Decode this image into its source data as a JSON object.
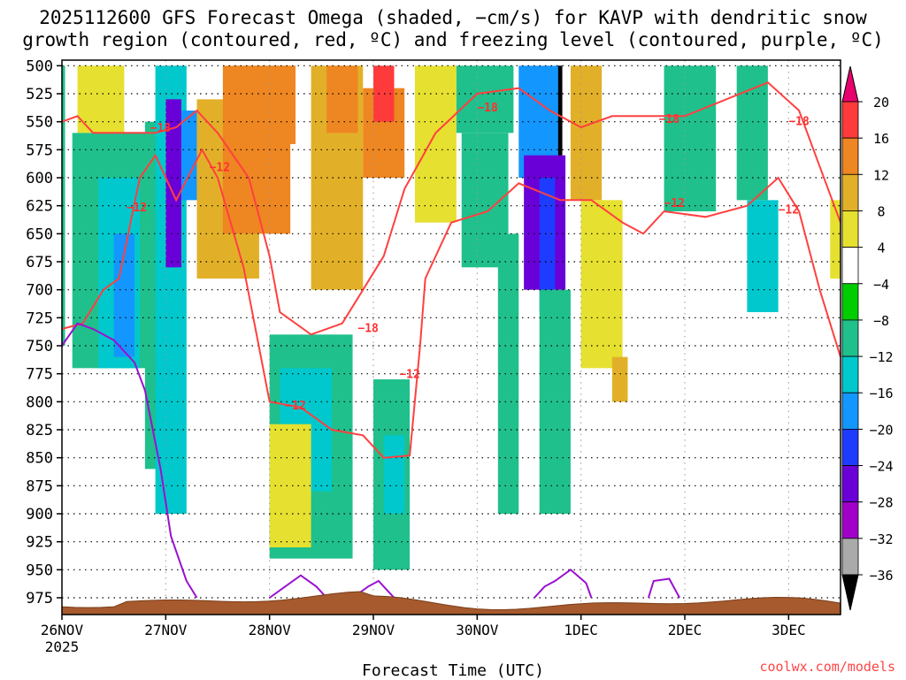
{
  "title_line1": "2025112600 GFS Forecast Omega (shaded, −cm/s) for KAVP with dendritic snow",
  "title_line2": "growth region (contoured, red, ºC) and freezing level (contoured, purple, ºC)",
  "credit": "coolwx.com/models",
  "chart_data": {
    "type": "heatmap",
    "title": "2025112600 GFS Forecast Omega (shaded, −cm/s) for KAVP with dendritic snow growth region (contoured, red, ºC) and freezing level (contoured, purple, ºC)",
    "xlabel": "Forecast Time (UTC)",
    "ylabel": "",
    "x_tick_labels": [
      "26NOV",
      "27NOV",
      "28NOV",
      "29NOV",
      "30NOV",
      "1DEC",
      "2DEC",
      "3DEC"
    ],
    "x_first_tick_sublabel": "2025",
    "y_tick_labels": [
      "500",
      "525",
      "550",
      "575",
      "600",
      "625",
      "650",
      "675",
      "700",
      "725",
      "750",
      "775",
      "800",
      "825",
      "850",
      "875",
      "900",
      "925",
      "950",
      "975"
    ],
    "y_range_hpa": [
      990,
      495
    ],
    "x_range_days_after_26nov00z": [
      0,
      7.5
    ],
    "grid": "dotted",
    "colorbar": {
      "labels": [
        "20",
        "16",
        "12",
        "8",
        "4",
        "−4",
        "−8",
        "−12",
        "−16",
        "−20",
        "−24",
        "−28",
        "−32",
        "−36"
      ],
      "colors": [
        "#e8006e",
        "#ff3a3a",
        "#ee8622",
        "#e2b028",
        "#e6e030",
        "#ffffff",
        "#00cd00",
        "#20c08c",
        "#00c8cc",
        "#1496ff",
        "#1e3cff",
        "#6a00d8",
        "#a000c8",
        "#aaaaaa",
        "#000000"
      ]
    },
    "omega_cells": [
      {
        "t0": 0.0,
        "t1": 0.03,
        "p0": 500,
        "p1": 750,
        "v": -10
      },
      {
        "t0": 0.15,
        "t1": 0.6,
        "p0": 500,
        "p1": 560,
        "v": 6
      },
      {
        "t0": 0.1,
        "t1": 0.9,
        "p0": 560,
        "p1": 770,
        "v": -9
      },
      {
        "t0": 0.35,
        "t1": 0.75,
        "p0": 600,
        "p1": 770,
        "v": -14
      },
      {
        "t0": 0.5,
        "t1": 0.7,
        "p0": 650,
        "p1": 760,
        "v": -19
      },
      {
        "t0": 0.8,
        "t1": 1.0,
        "p0": 550,
        "p1": 860,
        "v": -10
      },
      {
        "t0": 0.9,
        "t1": 1.2,
        "p0": 500,
        "p1": 900,
        "v": -13
      },
      {
        "t0": 1.0,
        "t1": 1.15,
        "p0": 530,
        "p1": 680,
        "v": -25
      },
      {
        "t0": 1.15,
        "t1": 1.3,
        "p0": 540,
        "p1": 620,
        "v": -18
      },
      {
        "t0": 1.3,
        "t1": 1.9,
        "p0": 530,
        "p1": 690,
        "v": 9
      },
      {
        "t0": 1.55,
        "t1": 2.2,
        "p0": 500,
        "p1": 650,
        "v": 12
      },
      {
        "t0": 1.65,
        "t1": 2.25,
        "p0": 500,
        "p1": 570,
        "v": 14
      },
      {
        "t0": 2.0,
        "t1": 2.8,
        "p0": 740,
        "p1": 940,
        "v": -8
      },
      {
        "t0": 2.1,
        "t1": 2.6,
        "p0": 770,
        "p1": 880,
        "v": -12
      },
      {
        "t0": 2.4,
        "t1": 2.9,
        "p0": 500,
        "p1": 700,
        "v": 10
      },
      {
        "t0": 2.55,
        "t1": 2.85,
        "p0": 500,
        "p1": 560,
        "v": 14
      },
      {
        "t0": 2.9,
        "t1": 3.3,
        "p0": 520,
        "p1": 600,
        "v": 12
      },
      {
        "t0": 3.0,
        "t1": 3.2,
        "p0": 500,
        "p1": 550,
        "v": 19
      },
      {
        "t0": 3.0,
        "t1": 3.35,
        "p0": 780,
        "p1": 950,
        "v": -9
      },
      {
        "t0": 3.1,
        "t1": 3.3,
        "p0": 830,
        "p1": 900,
        "v": -14
      },
      {
        "t0": 2.0,
        "t1": 2.4,
        "p0": 820,
        "p1": 930,
        "v": 6
      },
      {
        "t0": 3.4,
        "t1": 3.8,
        "p0": 500,
        "p1": 640,
        "v": 6
      },
      {
        "t0": 3.8,
        "t1": 4.35,
        "p0": 500,
        "p1": 560,
        "v": -8
      },
      {
        "t0": 3.85,
        "t1": 4.3,
        "p0": 560,
        "p1": 680,
        "v": -10
      },
      {
        "t0": 4.2,
        "t1": 4.4,
        "p0": 650,
        "p1": 900,
        "v": -9
      },
      {
        "t0": 4.4,
        "t1": 4.8,
        "p0": 500,
        "p1": 600,
        "v": -18
      },
      {
        "t0": 4.45,
        "t1": 4.85,
        "p0": 580,
        "p1": 700,
        "v": -25
      },
      {
        "t0": 4.6,
        "t1": 4.75,
        "p0": 600,
        "p1": 720,
        "v": -22
      },
      {
        "t0": 4.6,
        "t1": 4.9,
        "p0": 700,
        "p1": 900,
        "v": -11
      },
      {
        "t0": 4.78,
        "t1": 4.82,
        "p0": 500,
        "p1": 580,
        "v": -37
      },
      {
        "t0": 4.9,
        "t1": 5.2,
        "p0": 500,
        "p1": 620,
        "v": 10
      },
      {
        "t0": 5.0,
        "t1": 5.4,
        "p0": 620,
        "p1": 770,
        "v": 6
      },
      {
        "t0": 5.3,
        "t1": 5.45,
        "p0": 760,
        "p1": 800,
        "v": 9
      },
      {
        "t0": 5.8,
        "t1": 6.3,
        "p0": 500,
        "p1": 630,
        "v": -8
      },
      {
        "t0": 6.5,
        "t1": 6.8,
        "p0": 500,
        "p1": 620,
        "v": -9
      },
      {
        "t0": 6.6,
        "t1": 6.9,
        "p0": 620,
        "p1": 720,
        "v": -12
      },
      {
        "t0": 7.4,
        "t1": 7.5,
        "p0": 620,
        "p1": 690,
        "v": 6
      }
    ],
    "dgz_contours": [
      {
        "level": -12,
        "points": [
          [
            0.0,
            735
          ],
          [
            0.2,
            730
          ],
          [
            0.4,
            700
          ],
          [
            0.55,
            690
          ],
          [
            0.75,
            600
          ],
          [
            0.9,
            580
          ],
          [
            1.1,
            620
          ],
          [
            1.35,
            575
          ],
          [
            1.5,
            600
          ],
          [
            1.75,
            680
          ],
          [
            2.0,
            800
          ],
          [
            2.3,
            805
          ],
          [
            2.6,
            825
          ],
          [
            2.9,
            830
          ],
          [
            3.1,
            850
          ],
          [
            3.35,
            848
          ],
          [
            3.45,
            750
          ],
          [
            3.5,
            690
          ],
          [
            3.75,
            640
          ],
          [
            4.1,
            630
          ],
          [
            4.4,
            605
          ],
          [
            4.8,
            620
          ],
          [
            5.1,
            620
          ],
          [
            5.4,
            640
          ],
          [
            5.6,
            650
          ],
          [
            5.8,
            630
          ],
          [
            6.2,
            635
          ],
          [
            6.6,
            625
          ],
          [
            6.9,
            600
          ],
          [
            7.1,
            630
          ],
          [
            7.3,
            700
          ],
          [
            7.5,
            760
          ]
        ]
      },
      {
        "level": -18,
        "points": [
          [
            0.0,
            550
          ],
          [
            0.15,
            545
          ],
          [
            0.3,
            560
          ],
          [
            0.5,
            560
          ],
          [
            0.7,
            560
          ],
          [
            0.9,
            560
          ],
          [
            1.1,
            555
          ],
          [
            1.3,
            540
          ],
          [
            1.5,
            560
          ],
          [
            1.8,
            600
          ],
          [
            2.0,
            670
          ],
          [
            2.1,
            720
          ],
          [
            2.4,
            740
          ],
          [
            2.7,
            730
          ],
          [
            2.9,
            700
          ],
          [
            3.1,
            670
          ],
          [
            3.3,
            610
          ],
          [
            3.6,
            560
          ],
          [
            4.0,
            525
          ],
          [
            4.4,
            520
          ],
          [
            4.7,
            540
          ],
          [
            5.0,
            555
          ],
          [
            5.3,
            545
          ],
          [
            5.6,
            545
          ],
          [
            6.0,
            545
          ],
          [
            6.4,
            530
          ],
          [
            6.8,
            515
          ],
          [
            7.1,
            540
          ],
          [
            7.3,
            590
          ],
          [
            7.5,
            640
          ]
        ]
      }
    ],
    "freezing_contours": [
      {
        "level": 0,
        "points": [
          [
            0.0,
            750
          ],
          [
            0.15,
            730
          ],
          [
            0.3,
            735
          ],
          [
            0.5,
            745
          ],
          [
            0.7,
            765
          ],
          [
            0.8,
            790
          ],
          [
            0.95,
            860
          ],
          [
            1.05,
            920
          ],
          [
            1.2,
            960
          ],
          [
            1.3,
            975
          ]
        ]
      },
      {
        "level": 0,
        "points": [
          [
            2.0,
            975
          ],
          [
            2.15,
            965
          ],
          [
            2.3,
            955
          ],
          [
            2.45,
            965
          ],
          [
            2.55,
            975
          ]
        ]
      },
      {
        "level": 0,
        "points": [
          [
            2.8,
            975
          ],
          [
            2.95,
            965
          ],
          [
            3.05,
            960
          ],
          [
            3.15,
            970
          ],
          [
            3.2,
            975
          ]
        ]
      },
      {
        "level": 0,
        "points": [
          [
            4.55,
            975
          ],
          [
            4.65,
            965
          ],
          [
            4.75,
            960
          ],
          [
            4.9,
            950
          ],
          [
            5.05,
            962
          ],
          [
            5.1,
            975
          ]
        ]
      },
      {
        "level": 0,
        "points": [
          [
            5.65,
            975
          ],
          [
            5.7,
            960
          ],
          [
            5.85,
            958
          ],
          [
            5.95,
            975
          ]
        ]
      }
    ],
    "contour_labels": [
      {
        "t": 0.95,
        "p": 555,
        "text": "−18"
      },
      {
        "t": 0.72,
        "p": 626,
        "text": "−12"
      },
      {
        "t": 1.52,
        "p": 590,
        "text": "−12"
      },
      {
        "t": 2.25,
        "p": 803,
        "text": "−12"
      },
      {
        "t": 2.95,
        "p": 734,
        "text": "−18"
      },
      {
        "t": 3.35,
        "p": 775,
        "text": "−12"
      },
      {
        "t": 4.1,
        "p": 537,
        "text": "−18"
      },
      {
        "t": 5.85,
        "p": 547,
        "text": "−18"
      },
      {
        "t": 5.9,
        "p": 622,
        "text": "−12"
      },
      {
        "t": 7.1,
        "p": 549,
        "text": "−18"
      },
      {
        "t": 7.0,
        "p": 628,
        "text": "−12"
      }
    ],
    "terrain_top_hpa": 980
  }
}
